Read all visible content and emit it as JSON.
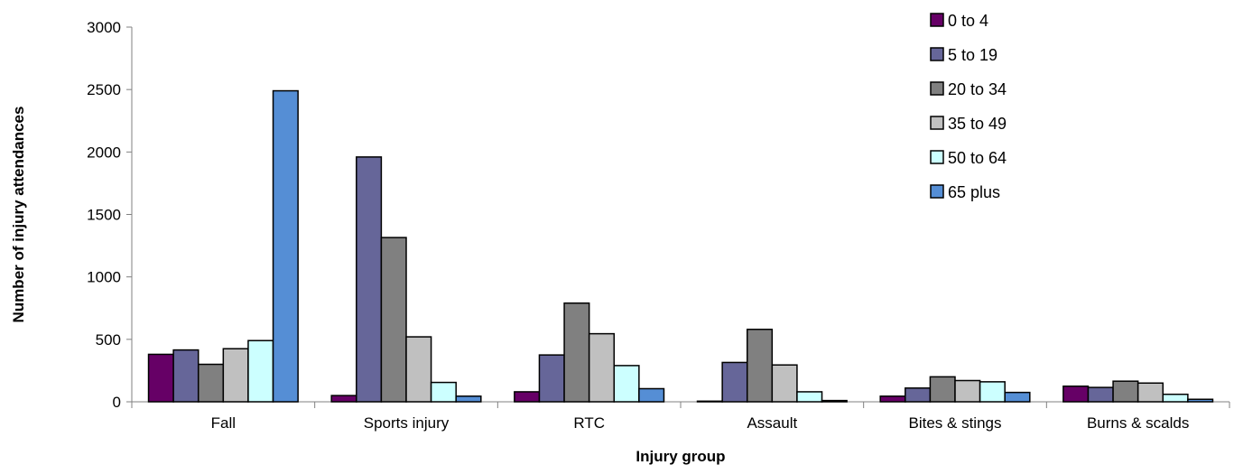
{
  "chart_data": {
    "type": "bar",
    "title": "",
    "xlabel": "Injury group",
    "ylabel": "Number of injury attendances",
    "ylim": [
      0,
      3000
    ],
    "yticks": [
      0,
      500,
      1000,
      1500,
      2000,
      2500,
      3000
    ],
    "grid": false,
    "legend_position": "top-right",
    "categories": [
      "Fall",
      "Sports injury",
      "RTC",
      "Assault",
      "Bites & stings",
      "Burns & scalds"
    ],
    "series": [
      {
        "name": "0 to 4",
        "color": "#660066",
        "values": [
          380,
          50,
          80,
          5,
          45,
          125
        ]
      },
      {
        "name": "5 to 19",
        "color": "#666699",
        "values": [
          415,
          1960,
          375,
          315,
          110,
          115
        ]
      },
      {
        "name": "20 to 34",
        "color": "#808080",
        "values": [
          300,
          1315,
          790,
          580,
          200,
          165
        ]
      },
      {
        "name": "35 to 49",
        "color": "#c0c0c0",
        "values": [
          425,
          520,
          545,
          295,
          170,
          150
        ]
      },
      {
        "name": "50 to 64",
        "color": "#ccffff",
        "values": [
          490,
          155,
          290,
          80,
          160,
          60
        ]
      },
      {
        "name": "65 plus",
        "color": "#558ed5",
        "values": [
          2490,
          45,
          105,
          10,
          75,
          20
        ]
      }
    ]
  }
}
